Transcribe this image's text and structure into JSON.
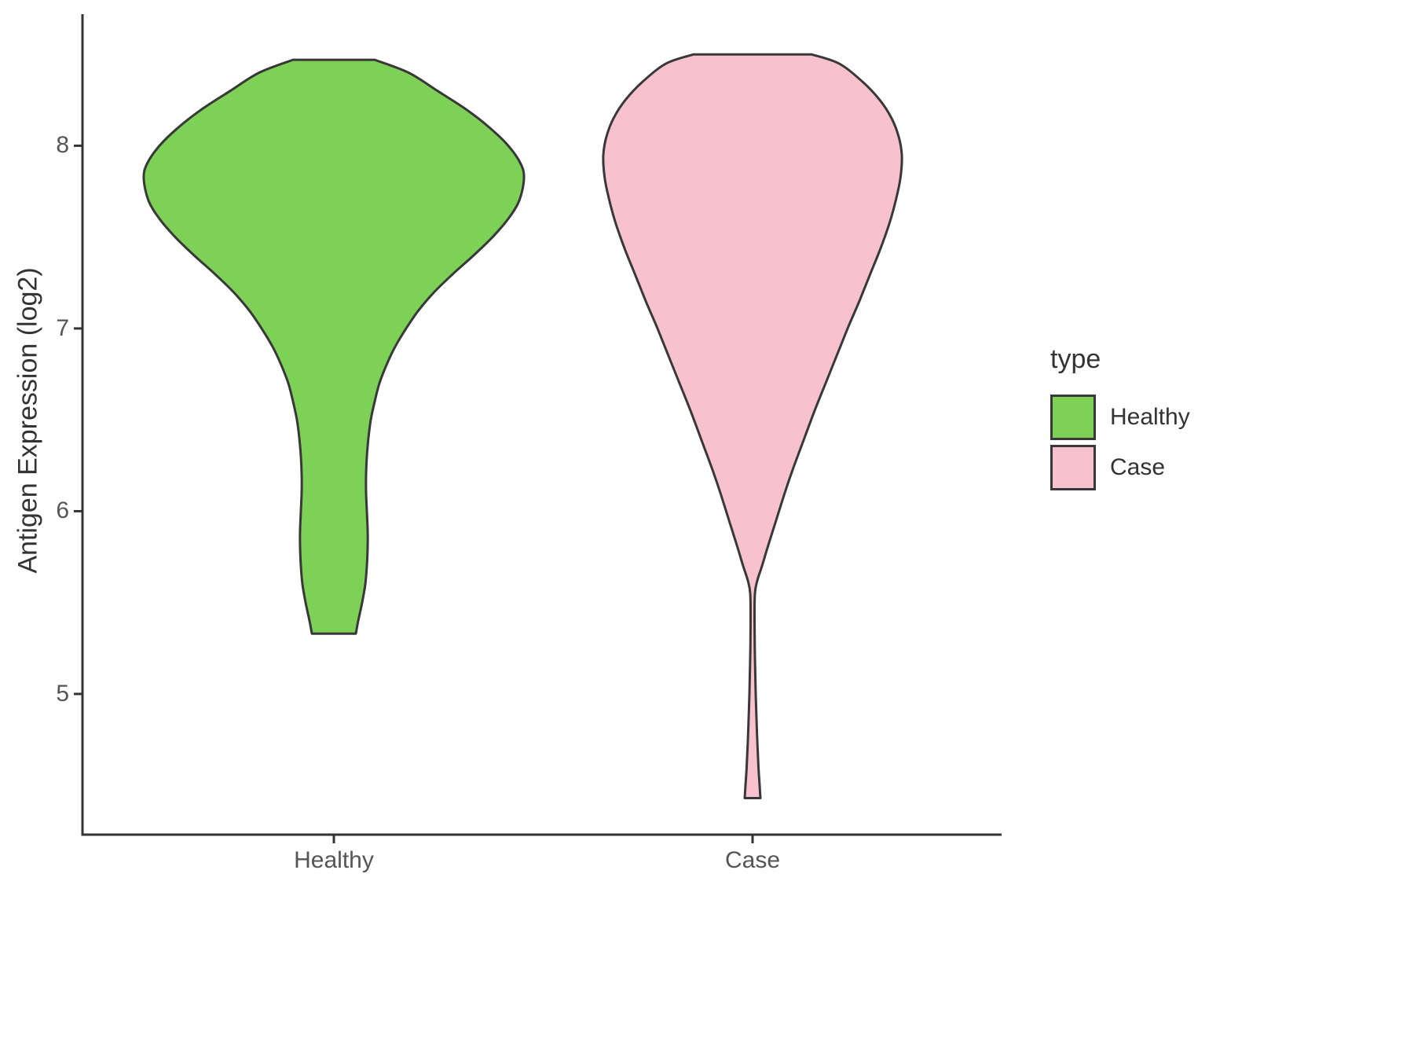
{
  "chart_data": {
    "type": "violin",
    "title": "",
    "xlabel": "",
    "ylabel": "Antigen Expression (log2)",
    "categories": [
      "Healthy",
      "Case"
    ],
    "yticks": [
      5,
      6,
      7,
      8
    ],
    "ylim": [
      4.23,
      8.72
    ],
    "grid": false,
    "legend": {
      "title": "type",
      "position": "right",
      "entries": [
        {
          "label": "Healthy",
          "color": "#7CD156"
        },
        {
          "label": "Case",
          "color": "#F8C1CE"
        }
      ]
    },
    "axis_color": "#333333",
    "violin_stroke": "#383838",
    "series": [
      {
        "name": "Healthy",
        "color": "#7CD156",
        "value_range": [
          5.33,
          8.47
        ],
        "profile": [
          [
            8.47,
            52
          ],
          [
            8.4,
            95
          ],
          [
            8.3,
            132
          ],
          [
            8.2,
            168
          ],
          [
            8.1,
            198
          ],
          [
            8.0,
            222
          ],
          [
            7.9,
            238
          ],
          [
            7.82,
            242
          ],
          [
            7.7,
            236
          ],
          [
            7.6,
            222
          ],
          [
            7.5,
            202
          ],
          [
            7.4,
            178
          ],
          [
            7.3,
            152
          ],
          [
            7.2,
            128
          ],
          [
            7.1,
            108
          ],
          [
            7.0,
            92
          ],
          [
            6.9,
            78
          ],
          [
            6.8,
            67
          ],
          [
            6.7,
            58
          ],
          [
            6.6,
            52
          ],
          [
            6.5,
            47
          ],
          [
            6.4,
            44
          ],
          [
            6.3,
            42
          ],
          [
            6.2,
            41
          ],
          [
            6.1,
            41
          ],
          [
            6.0,
            42
          ],
          [
            5.9,
            43
          ],
          [
            5.8,
            43
          ],
          [
            5.7,
            42
          ],
          [
            5.6,
            40
          ],
          [
            5.5,
            36
          ],
          [
            5.4,
            31
          ],
          [
            5.33,
            28
          ]
        ]
      },
      {
        "name": "Case",
        "color": "#F8C1CE",
        "value_range": [
          4.43,
          8.5
        ],
        "profile": [
          [
            8.5,
            75
          ],
          [
            8.45,
            110
          ],
          [
            8.35,
            140
          ],
          [
            8.25,
            162
          ],
          [
            8.15,
            177
          ],
          [
            8.05,
            186
          ],
          [
            7.95,
            190
          ],
          [
            7.85,
            189
          ],
          [
            7.75,
            185
          ],
          [
            7.6,
            176
          ],
          [
            7.45,
            164
          ],
          [
            7.3,
            150
          ],
          [
            7.15,
            136
          ],
          [
            7.0,
            121
          ],
          [
            6.85,
            107
          ],
          [
            6.7,
            93
          ],
          [
            6.55,
            79
          ],
          [
            6.4,
            66
          ],
          [
            6.25,
            53
          ],
          [
            6.1,
            41
          ],
          [
            5.95,
            30
          ],
          [
            5.8,
            19
          ],
          [
            5.7,
            12
          ],
          [
            5.62,
            6
          ],
          [
            5.55,
            3
          ],
          [
            5.4,
            2.5
          ],
          [
            5.2,
            3
          ],
          [
            5.0,
            4
          ],
          [
            4.8,
            5.5
          ],
          [
            4.6,
            7.5
          ],
          [
            4.5,
            9
          ],
          [
            4.43,
            10
          ]
        ]
      }
    ]
  }
}
